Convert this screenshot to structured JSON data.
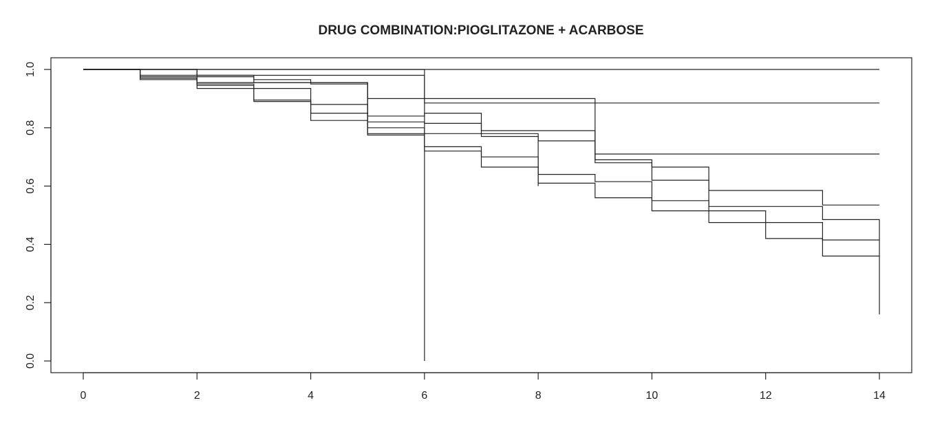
{
  "chart_data": {
    "type": "line",
    "title": "DRUG COMBINATION:PIOGLITAZONE + ACARBOSE",
    "xlabel": "",
    "ylabel": "",
    "xlim": [
      0,
      14
    ],
    "ylim": [
      0,
      1
    ],
    "x_ticks": [
      0,
      2,
      4,
      6,
      8,
      10,
      12,
      14
    ],
    "x_tick_labels": [
      "0",
      "2",
      "4",
      "6",
      "8",
      "10",
      "12",
      "14"
    ],
    "y_ticks": [
      0,
      0.2,
      0.4,
      0.6,
      0.8,
      1.0
    ],
    "y_tick_labels": [
      "0.0",
      "0.2",
      "0.4",
      "0.6",
      "0.8",
      "1.0"
    ],
    "step": true,
    "grid": false,
    "line_color": "#222222",
    "series": [
      {
        "x": [
          0,
          6,
          14
        ],
        "y": [
          1.0,
          1.0,
          1.0
        ]
      },
      {
        "x": [
          0,
          6
        ],
        "y": [
          1.0,
          0.0
        ]
      },
      {
        "x": [
          0,
          1,
          6,
          14
        ],
        "y": [
          1.0,
          0.98,
          0.885,
          0.885
        ]
      },
      {
        "x": [
          0,
          1,
          3,
          4,
          5,
          9,
          14
        ],
        "y": [
          1.0,
          0.975,
          0.965,
          0.95,
          0.9,
          0.71,
          0.71
        ]
      },
      {
        "x": [
          0,
          1,
          2,
          5,
          8
        ],
        "y": [
          1.0,
          0.97,
          0.955,
          0.78,
          0.6
        ]
      },
      {
        "x": [
          0,
          1,
          2,
          3,
          4,
          5,
          6,
          7,
          9,
          10,
          11,
          13,
          14
        ],
        "y": [
          1.0,
          0.965,
          0.935,
          0.895,
          0.88,
          0.84,
          0.85,
          0.79,
          0.69,
          0.665,
          0.585,
          0.535,
          0.535
        ]
      },
      {
        "x": [
          0,
          1,
          2,
          3,
          4,
          5,
          6,
          7,
          8,
          9,
          10,
          11,
          12,
          13,
          14
        ],
        "y": [
          1.0,
          0.97,
          0.945,
          0.89,
          0.85,
          0.82,
          0.815,
          0.77,
          0.755,
          0.68,
          0.62,
          0.53,
          0.53,
          0.485,
          0.16
        ]
      },
      {
        "x": [
          0,
          2,
          3,
          4,
          5,
          6,
          7,
          8,
          9,
          10,
          11,
          12,
          13,
          14
        ],
        "y": [
          1.0,
          0.95,
          0.935,
          0.825,
          0.8,
          0.735,
          0.7,
          0.64,
          0.615,
          0.55,
          0.515,
          0.475,
          0.415,
          0.415
        ]
      },
      {
        "x": [
          0,
          2,
          3,
          5,
          6,
          7,
          8,
          9,
          10,
          11,
          12,
          13,
          14
        ],
        "y": [
          1.0,
          0.98,
          0.955,
          0.775,
          0.72,
          0.665,
          0.61,
          0.56,
          0.515,
          0.475,
          0.42,
          0.36,
          0.36
        ]
      }
    ]
  }
}
